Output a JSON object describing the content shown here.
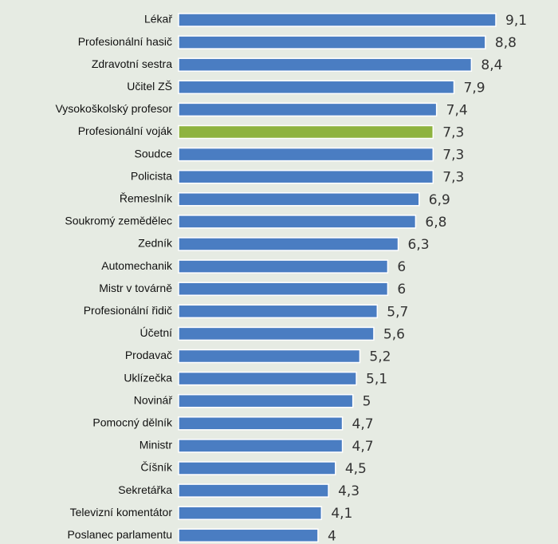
{
  "chart_data": {
    "type": "hbar",
    "categories": [
      "Lékař",
      "Profesionální hasič",
      "Zdravotní sestra",
      "Učitel ZŠ",
      "Vysokoškolský profesor",
      "Profesionální voják",
      "Soudce",
      "Policista",
      "Řemeslník",
      "Soukromý zemědělec",
      "Zedník",
      "Automechanik",
      "Mistr v továrně",
      "Profesionální řidič",
      "Účetní",
      "Prodavač",
      "Uklízečka",
      "Novinář",
      "Pomocný dělník",
      "Ministr",
      "Číšník",
      "Sekretářka",
      "Televizní komentátor",
      "Poslanec parlamentu"
    ],
    "values": [
      9.1,
      8.8,
      8.4,
      7.9,
      7.4,
      7.3,
      7.3,
      7.3,
      6.9,
      6.8,
      6.3,
      6,
      6,
      5.7,
      5.6,
      5.2,
      5.1,
      5,
      4.7,
      4.7,
      4.5,
      4.3,
      4.1,
      4
    ],
    "value_labels": [
      "9,1",
      "8,8",
      "8,4",
      "7,9",
      "7,4",
      "7,3",
      "7,3",
      "7,3",
      "6,9",
      "6,8",
      "6,3",
      "6",
      "6",
      "5,7",
      "5,6",
      "5,2",
      "5,1",
      "5",
      "4,7",
      "4,7",
      "4,5",
      "4,3",
      "4,1",
      "4"
    ],
    "colors": [
      "#4a7dc2",
      "#4a7dc2",
      "#4a7dc2",
      "#4a7dc2",
      "#4a7dc2",
      "#8eb33f",
      "#4a7dc2",
      "#4a7dc2",
      "#4a7dc2",
      "#4a7dc2",
      "#4a7dc2",
      "#4a7dc2",
      "#4a7dc2",
      "#4a7dc2",
      "#4a7dc2",
      "#4a7dc2",
      "#4a7dc2",
      "#4a7dc2",
      "#4a7dc2",
      "#4a7dc2",
      "#4a7dc2",
      "#4a7dc2",
      "#4a7dc2",
      "#4a7dc2"
    ]
  }
}
